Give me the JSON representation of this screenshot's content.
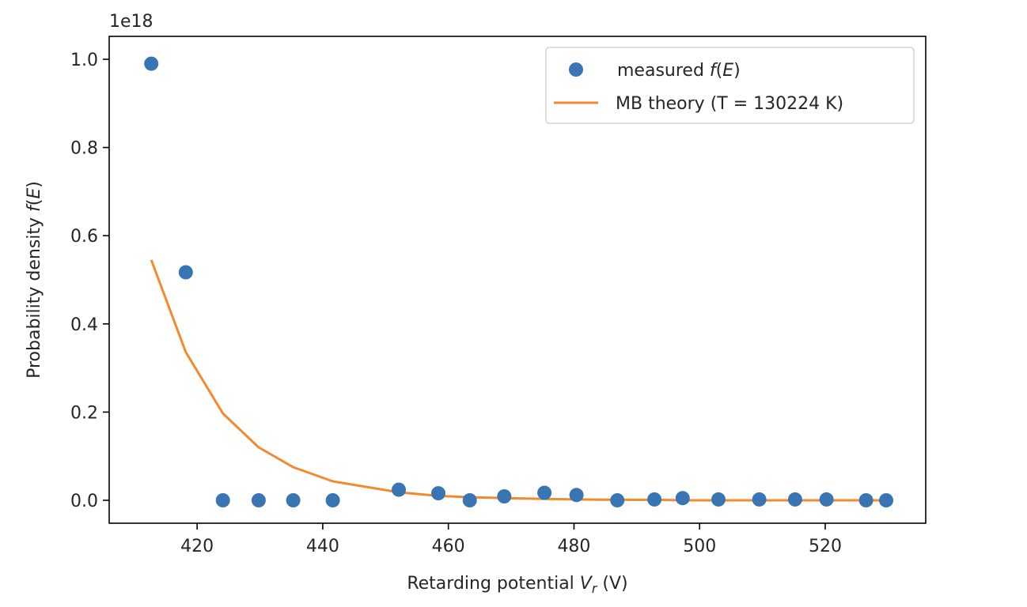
{
  "chart_data": {
    "type": "scatter",
    "title": "",
    "offset_text": "1e18",
    "xlabel": {
      "pre": "Retarding potential ",
      "var": "V",
      "sub": "r",
      "post": " (V)"
    },
    "ylabel": {
      "pre": "Probability density ",
      "var": "f",
      "paren_open": "(",
      "arg": "E",
      "paren_close": ")"
    },
    "xlim": [
      406,
      536
    ],
    "ylim": [
      -0.052,
      1.052
    ],
    "xticks": [
      420,
      440,
      460,
      480,
      500,
      520
    ],
    "yticks": [
      0.0,
      0.2,
      0.4,
      0.6,
      0.8,
      1.0
    ],
    "xtick_labels": [
      "420",
      "440",
      "460",
      "480",
      "500",
      "520"
    ],
    "ytick_labels": [
      "0.0",
      "0.2",
      "0.4",
      "0.6",
      "0.8",
      "1.0"
    ],
    "legend_position": "top-right",
    "series": [
      {
        "name": "measured f(E)",
        "legend": {
          "pre": "measured ",
          "var": "f",
          "paren_open": "(",
          "arg": "E",
          "paren_close": ")"
        },
        "kind": "scatter",
        "color": "#3a75b3",
        "x": [
          412.7,
          418.2,
          424.1,
          429.8,
          435.3,
          441.6,
          452.1,
          458.4,
          463.4,
          468.9,
          475.3,
          480.4,
          486.9,
          492.8,
          497.3,
          503.0,
          509.5,
          515.2,
          520.2,
          526.5,
          529.7
        ],
        "y": [
          0.99,
          0.517,
          0.0,
          0.0,
          0.0,
          0.0,
          0.024,
          0.016,
          0.0,
          0.009,
          0.017,
          0.012,
          0.0,
          0.002,
          0.005,
          0.002,
          0.002,
          0.002,
          0.002,
          0.0,
          0.0
        ]
      },
      {
        "name": "MB theory (T = 130224 K)",
        "legend": {
          "text": "MB theory (T = 130224 K)"
        },
        "kind": "line",
        "color": "#f28a2e",
        "x": [
          412.7,
          418.2,
          424.1,
          429.8,
          435.3,
          441.6,
          452.1,
          458.4,
          463.4,
          468.9,
          475.3,
          480.4,
          486.9,
          492.8,
          497.3,
          503.0,
          509.5,
          515.2,
          520.2,
          526.5,
          529.7
        ],
        "y": [
          0.545,
          0.336,
          0.197,
          0.12,
          0.075,
          0.043,
          0.018,
          0.01,
          0.007,
          0.005,
          0.003,
          0.002,
          0.001,
          0.001,
          0.0,
          0.0,
          0.0,
          0.0,
          0.0,
          0.0,
          0.0
        ]
      }
    ]
  }
}
